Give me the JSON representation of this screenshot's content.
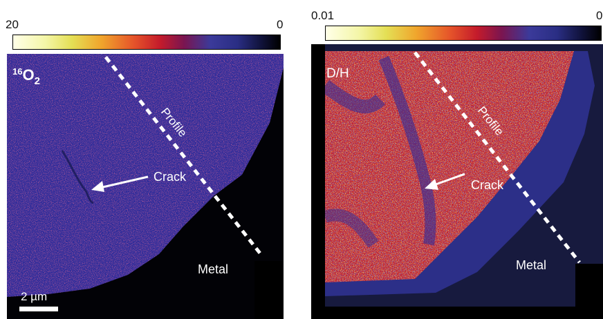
{
  "left_panel": {
    "scale_max": "20",
    "scale_min": "0",
    "map_label_superscript": "16",
    "map_label_main": "O",
    "map_label_subscript": "2",
    "profile_label": "Profile",
    "crack_label": "Crack",
    "metal_label": "Metal",
    "scalebar_label": "2 µm"
  },
  "right_panel": {
    "scale_max": "0.01",
    "scale_min": "0",
    "map_label": "D/H",
    "profile_label": "Profile",
    "crack_label": "Crack",
    "metal_label": "Metal"
  },
  "colors": {
    "oxide_blue": "#2e2c9a",
    "metal_black": "#020206",
    "hot_yellow": "#f4e03a",
    "hot_red": "#c41b2b",
    "annotation": "#ffffff"
  }
}
